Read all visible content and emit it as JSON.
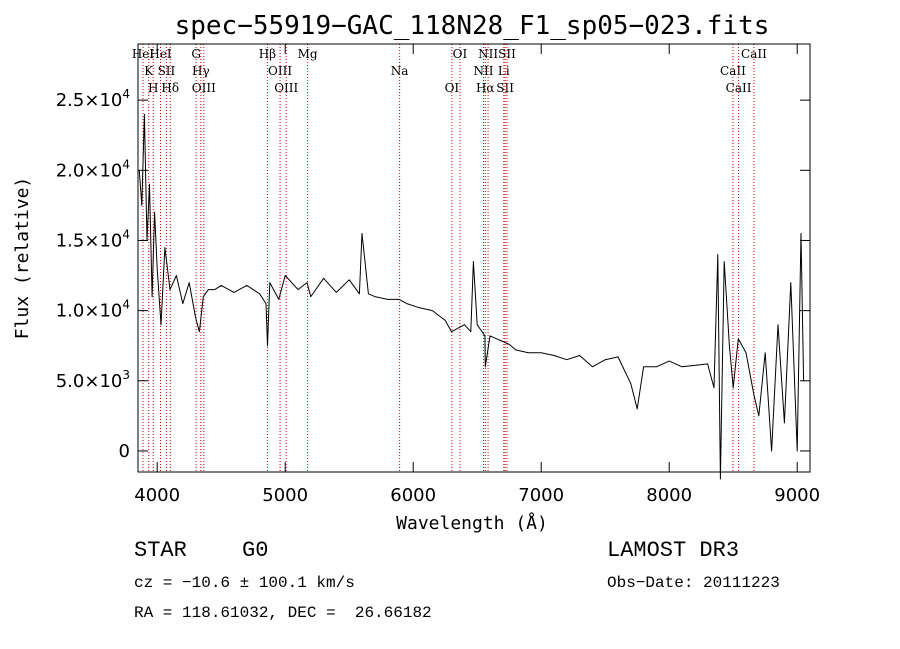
{
  "chart_data": {
    "type": "line",
    "title": "spec−55919−GAC_118N28_F1_sp05−023.fits",
    "xlabel": "Wavelength (Å)",
    "ylabel": "Flux (relative)",
    "xlim": [
      3850,
      9100
    ],
    "ylim": [
      -1500,
      29000
    ],
    "x_ticks": [
      4000,
      5000,
      6000,
      7000,
      8000,
      9000
    ],
    "x_tick_labels": [
      "4000",
      "5000",
      "6000",
      "7000",
      "8000",
      "9000"
    ],
    "y_ticks": [
      0,
      5000,
      10000,
      15000,
      20000,
      25000
    ],
    "y_tick_labels": [
      {
        "mantissa": "0",
        "exp": ""
      },
      {
        "mantissa": "5.0×10",
        "exp": "3"
      },
      {
        "mantissa": "1.0×10",
        "exp": "4"
      },
      {
        "mantissa": "1.5×10",
        "exp": "4"
      },
      {
        "mantissa": "2.0×10",
        "exp": "4"
      },
      {
        "mantissa": "2.5×10",
        "exp": "4"
      }
    ],
    "spectrum_color": "#000000",
    "line_marker_color": "#cc0000",
    "series": [
      {
        "name": "flux",
        "x": [
          3860,
          3880,
          3900,
          3920,
          3940,
          3960,
          3980,
          4000,
          4030,
          4060,
          4100,
          4150,
          4200,
          4250,
          4300,
          4330,
          4360,
          4400,
          4450,
          4500,
          4600,
          4700,
          4800,
          4850,
          4862,
          4880,
          4950,
          5000,
          5100,
          5170,
          5200,
          5300,
          5400,
          5500,
          5580,
          5600,
          5650,
          5700,
          5800,
          5890,
          5950,
          6050,
          6150,
          6250,
          6300,
          6400,
          6450,
          6470,
          6500,
          6560,
          6563,
          6600,
          6650,
          6700,
          6750,
          6800,
          6900,
          7000,
          7100,
          7200,
          7300,
          7400,
          7500,
          7600,
          7700,
          7750,
          7800,
          7900,
          8000,
          8100,
          8200,
          8300,
          8350,
          8380,
          8400,
          8430,
          8470,
          8500,
          8540,
          8600,
          8662,
          8700,
          8750,
          8800,
          8850,
          8900,
          8950,
          9000,
          9030,
          9050
        ],
        "y": [
          20000,
          17500,
          24000,
          15000,
          19000,
          11000,
          17000,
          13000,
          9000,
          14500,
          11500,
          12500,
          10500,
          12000,
          9500,
          8500,
          11000,
          11500,
          11500,
          11800,
          11300,
          11800,
          11200,
          10500,
          7500,
          12000,
          10800,
          12500,
          11500,
          12000,
          11000,
          12300,
          11300,
          12200,
          11200,
          15500,
          11200,
          11000,
          10800,
          10800,
          10500,
          10200,
          10000,
          9300,
          8500,
          9000,
          8500,
          13500,
          9000,
          8200,
          6000,
          8200,
          8000,
          7800,
          7600,
          7200,
          7000,
          7000,
          6800,
          6500,
          6800,
          6000,
          6500,
          6700,
          4800,
          3000,
          6000,
          6000,
          6400,
          6000,
          6100,
          6200,
          4500,
          14000,
          -2000,
          13500,
          7500,
          4500,
          8000,
          7000,
          4000,
          2500,
          7000,
          0,
          9000,
          2000,
          12000,
          0,
          15500,
          5000
        ]
      }
    ],
    "lines": [
      {
        "wl": 3889,
        "label": "HeI"
      },
      {
        "wl": 3934,
        "label": "K"
      },
      {
        "wl": 3969,
        "label": "H"
      },
      {
        "wl": 4026,
        "label": "HeI"
      },
      {
        "wl": 4072,
        "label": "SII"
      },
      {
        "wl": 4102,
        "label": "Hδ"
      },
      {
        "wl": 4304,
        "label": "G"
      },
      {
        "wl": 4341,
        "label": "Hγ"
      },
      {
        "wl": 4364,
        "label": "OIII"
      },
      {
        "wl": 4861,
        "label": "Hβ"
      },
      {
        "wl": 4960,
        "label": "OIII"
      },
      {
        "wl": 5008,
        "label": "OIII"
      },
      {
        "wl": 5175,
        "label": "Mg"
      },
      {
        "wl": 5894,
        "label": "Na"
      },
      {
        "wl": 6302,
        "label": "OI"
      },
      {
        "wl": 6365,
        "label": "OI"
      },
      {
        "wl": 6549,
        "label": "NII"
      },
      {
        "wl": 6563,
        "label": "Hα"
      },
      {
        "wl": 6585,
        "label": "NII"
      },
      {
        "wl": 6708,
        "label": "Li"
      },
      {
        "wl": 6718,
        "label": "SII"
      },
      {
        "wl": 6733,
        "label": "SII"
      },
      {
        "wl": 8498,
        "label": "CaII"
      },
      {
        "wl": 8542,
        "label": "CaII"
      },
      {
        "wl": 8662,
        "label": "CaII"
      }
    ]
  },
  "info": {
    "object_class": "STAR",
    "subclass": "G0",
    "survey": "LAMOST DR3",
    "velocity": "cz = −10.6 ± 100.1 km/s",
    "obs_date": "Obs−Date: 20111223",
    "coords": "RA = 118.61032, DEC =  26.66182"
  }
}
